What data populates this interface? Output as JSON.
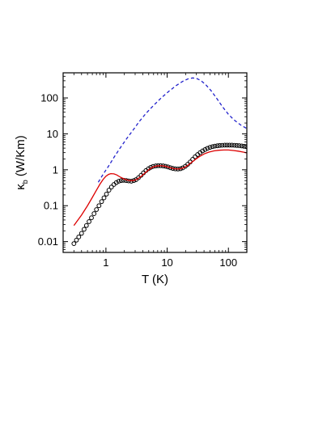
{
  "chart_data": {
    "type": "scatter",
    "xlabel": "T (K)",
    "ylabel": {
      "symbol": "κ",
      "subscript": "b",
      "unit": " (W/Km)"
    },
    "xscale": "log",
    "yscale": "log",
    "xlim": [
      0.2,
      200
    ],
    "ylim": [
      0.005,
      500
    ],
    "grid": false,
    "legend": "none",
    "x_ticks": [
      {
        "value": 1,
        "label": "1"
      },
      {
        "value": 10,
        "label": "10"
      },
      {
        "value": 100,
        "label": "100"
      }
    ],
    "y_ticks": [
      {
        "value": 0.01,
        "label": "0.01"
      },
      {
        "value": 0.1,
        "label": "0.1"
      },
      {
        "value": 1,
        "label": "1"
      },
      {
        "value": 10,
        "label": "10"
      },
      {
        "value": 100,
        "label": "100"
      }
    ],
    "series": [
      {
        "kind": "markers",
        "marker": "open-circle",
        "color": "#000000",
        "points": [
          [
            0.3,
            0.0088
          ],
          [
            0.33,
            0.011
          ],
          [
            0.36,
            0.0135
          ],
          [
            0.4,
            0.017
          ],
          [
            0.44,
            0.022
          ],
          [
            0.48,
            0.028
          ],
          [
            0.53,
            0.036
          ],
          [
            0.58,
            0.046
          ],
          [
            0.64,
            0.06
          ],
          [
            0.7,
            0.078
          ],
          [
            0.77,
            0.1
          ],
          [
            0.85,
            0.13
          ],
          [
            0.93,
            0.165
          ],
          [
            1.02,
            0.21
          ],
          [
            1.12,
            0.27
          ],
          [
            1.23,
            0.33
          ],
          [
            1.35,
            0.39
          ],
          [
            1.48,
            0.44
          ],
          [
            1.62,
            0.48
          ],
          [
            1.78,
            0.5
          ],
          [
            1.95,
            0.51
          ],
          [
            2.15,
            0.5
          ],
          [
            2.35,
            0.49
          ],
          [
            2.6,
            0.48
          ],
          [
            2.85,
            0.5
          ],
          [
            3.1,
            0.53
          ],
          [
            3.4,
            0.6
          ],
          [
            3.75,
            0.7
          ],
          [
            4.1,
            0.82
          ],
          [
            4.5,
            0.95
          ],
          [
            4.95,
            1.07
          ],
          [
            5.4,
            1.17
          ],
          [
            5.9,
            1.24
          ],
          [
            6.5,
            1.28
          ],
          [
            7.1,
            1.3
          ],
          [
            7.8,
            1.3
          ],
          [
            8.6,
            1.28
          ],
          [
            9.4,
            1.25
          ],
          [
            10.3,
            1.2
          ],
          [
            11.3,
            1.14
          ],
          [
            12.4,
            1.09
          ],
          [
            13.6,
            1.06
          ],
          [
            15,
            1.05
          ],
          [
            16.5,
            1.07
          ],
          [
            18,
            1.13
          ],
          [
            19.8,
            1.25
          ],
          [
            21.7,
            1.42
          ],
          [
            23.8,
            1.65
          ],
          [
            26.1,
            1.95
          ],
          [
            28.6,
            2.3
          ],
          [
            31.4,
            2.65
          ],
          [
            34.5,
            3.0
          ],
          [
            37.8,
            3.35
          ],
          [
            41.5,
            3.65
          ],
          [
            45.5,
            3.95
          ],
          [
            50,
            4.2
          ],
          [
            55,
            4.4
          ],
          [
            60,
            4.55
          ],
          [
            66,
            4.65
          ],
          [
            72,
            4.75
          ],
          [
            79,
            4.8
          ],
          [
            87,
            4.85
          ],
          [
            95,
            4.85
          ],
          [
            104,
            4.85
          ],
          [
            114,
            4.85
          ],
          [
            125,
            4.8
          ],
          [
            137,
            4.75
          ],
          [
            150,
            4.7
          ],
          [
            165,
            4.6
          ],
          [
            180,
            4.5
          ],
          [
            195,
            4.4
          ]
        ]
      },
      {
        "kind": "line",
        "style": "solid",
        "color": "#dd0000",
        "points": [
          [
            0.3,
            0.028
          ],
          [
            0.4,
            0.055
          ],
          [
            0.5,
            0.1
          ],
          [
            0.6,
            0.17
          ],
          [
            0.7,
            0.27
          ],
          [
            0.8,
            0.4
          ],
          [
            0.9,
            0.54
          ],
          [
            1.0,
            0.66
          ],
          [
            1.1,
            0.74
          ],
          [
            1.2,
            0.78
          ],
          [
            1.35,
            0.77
          ],
          [
            1.5,
            0.72
          ],
          [
            1.7,
            0.63
          ],
          [
            2.0,
            0.55
          ],
          [
            2.4,
            0.5
          ],
          [
            2.8,
            0.5
          ],
          [
            3.2,
            0.54
          ],
          [
            3.7,
            0.64
          ],
          [
            4.3,
            0.8
          ],
          [
            5.0,
            1.0
          ],
          [
            5.8,
            1.18
          ],
          [
            6.8,
            1.28
          ],
          [
            8.0,
            1.3
          ],
          [
            9.5,
            1.24
          ],
          [
            11.0,
            1.15
          ],
          [
            13.0,
            1.07
          ],
          [
            15.0,
            1.05
          ],
          [
            17.0,
            1.08
          ],
          [
            19.5,
            1.18
          ],
          [
            22.0,
            1.35
          ],
          [
            25.0,
            1.6
          ],
          [
            29.0,
            1.95
          ],
          [
            34.0,
            2.35
          ],
          [
            40.0,
            2.75
          ],
          [
            48.0,
            3.1
          ],
          [
            58.0,
            3.35
          ],
          [
            70.0,
            3.5
          ],
          [
            85.0,
            3.55
          ],
          [
            100.0,
            3.55
          ],
          [
            120.0,
            3.45
          ],
          [
            145.0,
            3.3
          ],
          [
            175.0,
            3.1
          ],
          [
            200.0,
            2.95
          ]
        ]
      },
      {
        "kind": "line",
        "style": "dashed",
        "color": "#2222cc",
        "points": [
          [
            0.75,
            0.45
          ],
          [
            0.9,
            0.75
          ],
          [
            1.1,
            1.25
          ],
          [
            1.35,
            2.2
          ],
          [
            1.7,
            4.0
          ],
          [
            2.2,
            7.5
          ],
          [
            2.8,
            13
          ],
          [
            3.5,
            22
          ],
          [
            4.5,
            37
          ],
          [
            6.0,
            62
          ],
          [
            8.0,
            100
          ],
          [
            10.5,
            150
          ],
          [
            14.0,
            220
          ],
          [
            18.0,
            290
          ],
          [
            22.0,
            340
          ],
          [
            26.0,
            360
          ],
          [
            30.0,
            350
          ],
          [
            35.0,
            310
          ],
          [
            42.0,
            240
          ],
          [
            52.0,
            160
          ],
          [
            65.0,
            95
          ],
          [
            80.0,
            57
          ],
          [
            100.0,
            35
          ],
          [
            125.0,
            24
          ],
          [
            160.0,
            17.5
          ],
          [
            200.0,
            14
          ]
        ]
      }
    ]
  }
}
